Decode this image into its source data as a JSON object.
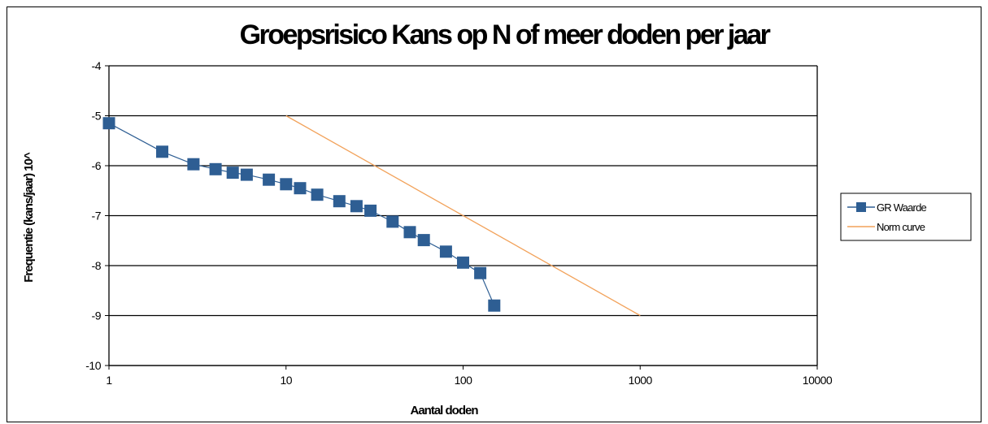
{
  "chart_data": {
    "type": "line",
    "title": "Groepsrisico Kans op N of meer doden per jaar",
    "xlabel": "Aantal doden",
    "ylabel": "Frequentie (kans/jaar) 10^",
    "x_scale": "log",
    "xlim": [
      1,
      10000
    ],
    "ylim": [
      -10,
      -4
    ],
    "x_ticks": [
      "1",
      "10",
      "100",
      "1000",
      "10000"
    ],
    "y_ticks": [
      "-4",
      "-5",
      "-6",
      "-7",
      "-8",
      "-9",
      "-10"
    ],
    "grid": "horizontal",
    "legend_position": "right",
    "series": [
      {
        "name": "GR Waarde",
        "color": "#2E5E93",
        "marker": "square",
        "points": [
          {
            "x": 1,
            "y": -5.15
          },
          {
            "x": 2,
            "y": -5.72
          },
          {
            "x": 3,
            "y": -5.97
          },
          {
            "x": 4,
            "y": -6.07
          },
          {
            "x": 5,
            "y": -6.14
          },
          {
            "x": 6,
            "y": -6.18
          },
          {
            "x": 8,
            "y": -6.28
          },
          {
            "x": 10,
            "y": -6.37
          },
          {
            "x": 12,
            "y": -6.45
          },
          {
            "x": 15,
            "y": -6.58
          },
          {
            "x": 20,
            "y": -6.71
          },
          {
            "x": 25,
            "y": -6.81
          },
          {
            "x": 30,
            "y": -6.9
          },
          {
            "x": 40,
            "y": -7.12
          },
          {
            "x": 50,
            "y": -7.33
          },
          {
            "x": 60,
            "y": -7.49
          },
          {
            "x": 80,
            "y": -7.72
          },
          {
            "x": 100,
            "y": -7.94
          },
          {
            "x": 125,
            "y": -8.15
          },
          {
            "x": 150,
            "y": -8.8
          }
        ]
      },
      {
        "name": "Norm curve",
        "color": "#F2A25A",
        "marker": "none",
        "points": [
          {
            "x": 10,
            "y": -5
          },
          {
            "x": 1000,
            "y": -9
          }
        ]
      }
    ]
  }
}
